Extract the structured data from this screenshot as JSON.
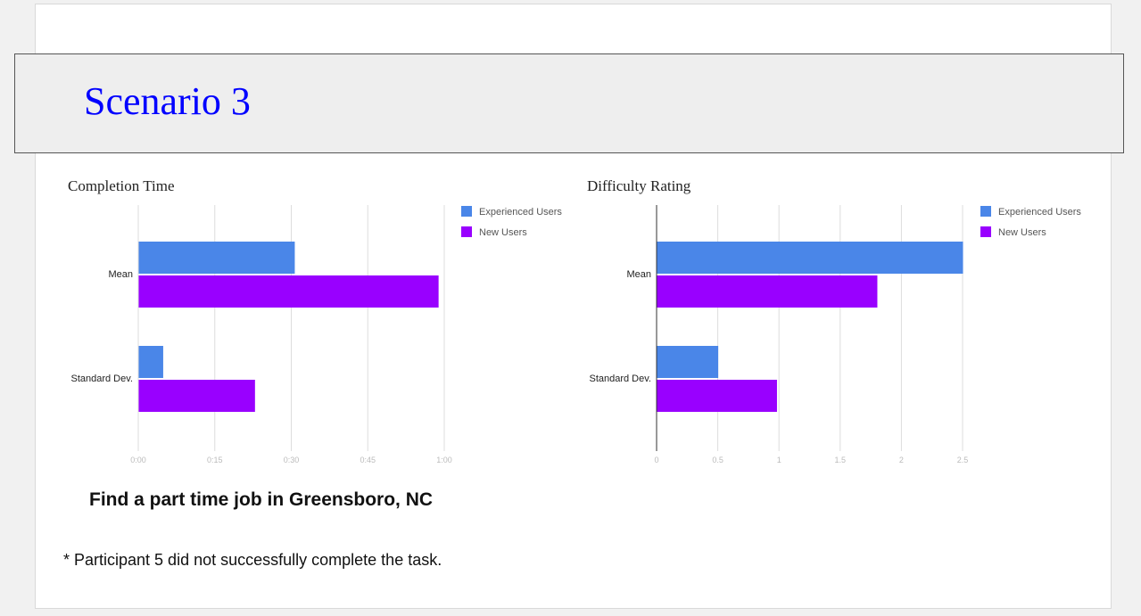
{
  "slide": {
    "title": "Scenario 3",
    "task": "Find a part time job in Greensboro, NC",
    "footnote": "* Participant 5 did not successfully complete the task."
  },
  "chart_data": [
    {
      "type": "bar",
      "orientation": "horizontal",
      "title": "Completion Time",
      "categories": [
        "Mean",
        "Standard Dev."
      ],
      "value_unit": "minutes",
      "series": [
        {
          "name": "Experienced Users",
          "color": "#4a86e8",
          "values": [
            0.51,
            0.08
          ]
        },
        {
          "name": "New Users",
          "color": "#9900ff",
          "values": [
            0.98,
            0.38
          ]
        }
      ],
      "xlim": [
        0,
        1
      ],
      "ticks": [
        {
          "value": 0,
          "label": "0:00"
        },
        {
          "value": 0.25,
          "label": "0:15"
        },
        {
          "value": 0.5,
          "label": "0:30"
        },
        {
          "value": 0.75,
          "label": "0:45"
        },
        {
          "value": 1,
          "label": "1:00"
        }
      ],
      "grid": true,
      "legend": "right"
    },
    {
      "type": "bar",
      "orientation": "horizontal",
      "title": "Difficulty Rating",
      "categories": [
        "Mean",
        "Standard Dev."
      ],
      "series": [
        {
          "name": "Experienced Users",
          "color": "#4a86e8",
          "values": [
            2.5,
            0.5
          ]
        },
        {
          "name": "New Users",
          "color": "#9900ff",
          "values": [
            1.8,
            0.98
          ]
        }
      ],
      "xlim": [
        0,
        2.5
      ],
      "ticks": [
        {
          "value": 0,
          "label": "0"
        },
        {
          "value": 0.5,
          "label": "0.5"
        },
        {
          "value": 1,
          "label": "1"
        },
        {
          "value": 1.5,
          "label": "1.5"
        },
        {
          "value": 2,
          "label": "2"
        },
        {
          "value": 2.5,
          "label": "2.5"
        }
      ],
      "grid": true,
      "legend": "right"
    }
  ]
}
